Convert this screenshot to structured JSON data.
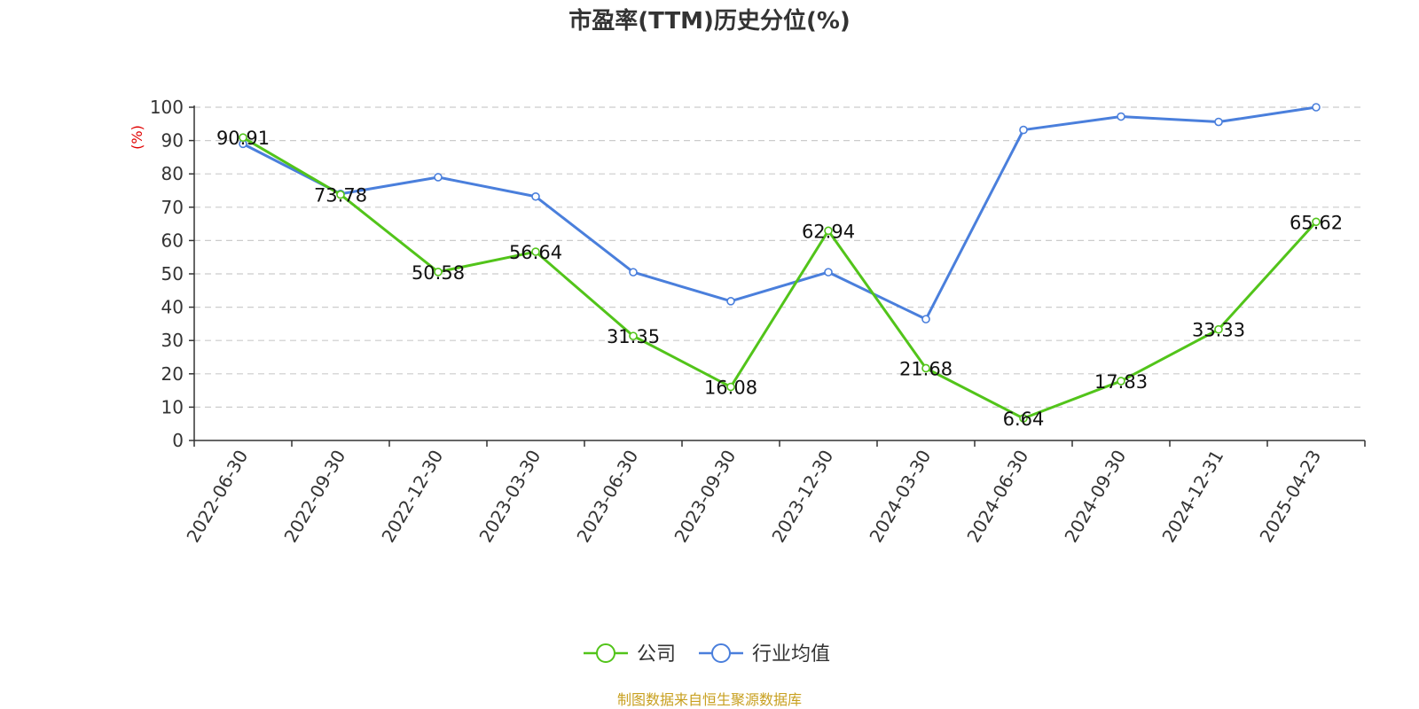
{
  "chart_data": {
    "type": "line",
    "title": "市盈率(TTM)历史分位(%)",
    "ylabel": "(%)",
    "ylim": [
      0,
      100
    ],
    "yticks": [
      0,
      10,
      20,
      30,
      40,
      50,
      60,
      70,
      80,
      90,
      100
    ],
    "grid": true,
    "legend_position": "bottom",
    "categories": [
      "2022-06-30",
      "2022-09-30",
      "2022-12-30",
      "2023-03-30",
      "2023-06-30",
      "2023-09-30",
      "2023-12-30",
      "2024-03-30",
      "2024-06-30",
      "2024-09-30",
      "2024-12-31",
      "2025-04-23"
    ],
    "series": [
      {
        "name": "公司",
        "color": "#52c41a",
        "values": [
          90.91,
          73.78,
          50.58,
          56.64,
          31.35,
          16.08,
          62.94,
          21.68,
          6.64,
          17.83,
          33.33,
          65.62
        ],
        "labels": [
          "90.91",
          "73.78",
          "50.58",
          "56.64",
          "31.35",
          "16.08",
          "62.94",
          "21.68",
          "6.64",
          "17.83",
          "33.33",
          "65.62"
        ]
      },
      {
        "name": "行业均值",
        "color": "#4a7fdc",
        "values": [
          89.0,
          74.0,
          79.0,
          73.2,
          50.5,
          41.8,
          50.5,
          36.4,
          93.2,
          97.2,
          95.6,
          100.0
        ]
      }
    ]
  },
  "source": "制图数据来自恒生聚源数据库",
  "colors": {
    "ylabel": "#e00000",
    "source": "#c8a020",
    "grid": "#cccccc",
    "axis": "#333333"
  }
}
